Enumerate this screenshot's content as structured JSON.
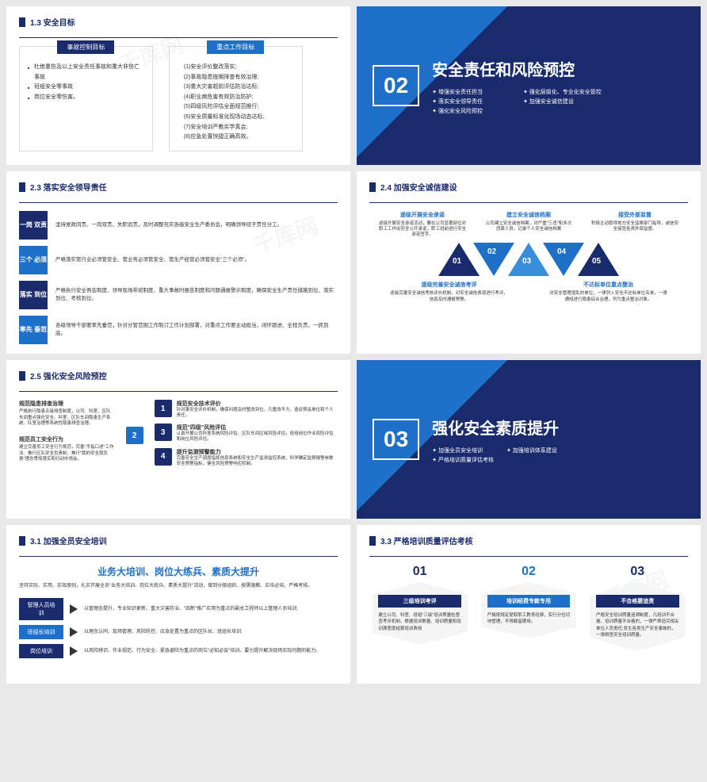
{
  "watermark": "千库网",
  "s13": {
    "title": "1.3 安全目标",
    "box1": {
      "tag": "事故控制目标",
      "items": [
        "杜绝重伤及以上安全责任事故和重大非伤亡事故",
        "班组安全零事故",
        "岗位安全零伤害。"
      ]
    },
    "box2": {
      "tag": "重点工作目标",
      "items": [
        "(1)安全评价整改落实;",
        "(2)事故隐患按期排查有效治理;",
        "(3)重大灾害超前评估防治达标;",
        "(4)职业病危害有效防治防护;",
        "(5)四级风险评估全面规范推行;",
        "(6)安全质量标准化现场动态达标;",
        "(7)安全培训严教实学真会;",
        "(8)应急处置快捷正确高效。"
      ]
    }
  },
  "sec02": {
    "num": "02",
    "title": "安全责任和风险预控",
    "bullets": [
      "增强安全责任担当",
      "强化层级化、专业化安全管控",
      "落实安全领导责任",
      "加强安全诚信建设",
      "强化安全风险预控"
    ]
  },
  "s23": {
    "title": "2.3 落实安全领导责任",
    "rows": [
      {
        "lbl": "一岗\n双责",
        "cls": "navy",
        "desc": "坚持党政同责、一岗双责、失职追责，及时调整充实各级安全生产委员会，明确领导班子责任分工。"
      },
      {
        "lbl": "三个\n必须",
        "cls": "blue",
        "desc": "严格落实管行业必须管安全、管业务必须管安全、管生产经营必须管安全\"三个必须\"。"
      },
      {
        "lbl": "落实\n到位",
        "cls": "navy",
        "desc": "严格执行安全例会制度、领导现场带班制度、重大事故时报告制度和问题通报警示制度，确保安全生产责任措施到位、落实到位、考核到位。"
      },
      {
        "lbl": "率先\n垂范",
        "cls": "blue",
        "desc": "各级领导干部要率先垂范，针对分管范围工作制订工作计划部署，对重点工作要主动担当，闭环跟进、全程负责、一抓到底。"
      }
    ]
  },
  "s24": {
    "title": "2.4 加强安全诚信建设",
    "tops": [
      {
        "h": "逐级开展安全承诺",
        "p": "逐级开展安全承诺活动，要在公司显著部位对职工工作出安全公开承诺，职工班前进行安全承诺签字。"
      },
      {
        "h": "建立安全诚信档案",
        "p": "公司建立安全诚信档案，对严重\"三违\"和多次违章人员，记录个人安全诚信档案"
      },
      {
        "h": "接受外部监督",
        "p": "积极主动取得地方安全监察部门指导，诚信安全接受各类外部监督。"
      }
    ],
    "tris": [
      {
        "n": "01",
        "dir": "up",
        "c": "#1a2b6d"
      },
      {
        "n": "02",
        "dir": "down",
        "c": "#1e6fc7"
      },
      {
        "n": "03",
        "dir": "up",
        "c": "#3a8dd8"
      },
      {
        "n": "04",
        "dir": "down",
        "c": "#1e6fc7"
      },
      {
        "n": "05",
        "dir": "up",
        "c": "#1a2b6d"
      }
    ],
    "bots": [
      {
        "h": "逐级完善安全诚信考评",
        "p": "逐级完善安全诚信考核评价机制，对安全诚信表现进行考评，信息及时通报预警。"
      },
      {
        "h": "不达标单位重点整治",
        "p": "对安全管理混乱的单位，一律列入安全不达标单位名单，一律通知进行隐患综合治理，列为重点整治对象。"
      }
    ]
  },
  "s25": {
    "title": "2.5 强化安全风险预控",
    "left": [
      {
        "h": "规范隐患排查治理",
        "p": "严格执行隐患五级排查制度，公司、科室、区队车间重点强化安全、科室、区队车间隐患生产系统、队室治理等系统性隐患排查治理。",
        "c": "#1e6fc7"
      },
      {
        "h": "规范员工安全行为",
        "p": "建立完善员工安全行为规范，完善\"手指口述\"工作法、推行区队安全负责制、推行\"我的安全我负责\"理念贯彻落实和行动中领会。",
        "c": "#1a2b6d"
      }
    ],
    "midnum": "2",
    "right": [
      {
        "n": "1",
        "c": "#1a2b6d",
        "h": "规范安全技术评价",
        "p": "针对事安全评价机制，确保问题及时整改到位，凡整改不力、造反预关单位和个人责任。"
      },
      {
        "n": "3",
        "c": "#1a2b6d",
        "h": "规范\"四级\"风险评估",
        "p": "认真开展公司科室系统风险评估、区队车间区域风险评估，班组岗位作业风险评估和岗位风险评估。"
      },
      {
        "n": "4",
        "c": "#1a2b6d",
        "h": "提升监测预警能力",
        "p": "完善安全生产调度指挥信息系统和安全生产监测监控系统，科学确定监察报警参数安全预警指标，健全风险预警响应机制。"
      }
    ]
  },
  "sec03": {
    "num": "03",
    "title": "强化安全素质提升",
    "bullets": [
      "加强全员安全培训",
      "加强培训体系建设",
      "严格培训质量评估考核"
    ]
  },
  "s31": {
    "title": "3.1 加强全员安全培训",
    "headline": "业务大培训、岗位大练兵、素质大提升",
    "intro": "坚持实际、实用、实效原则，扎实开展全员\"业务大培训、岗位大练兵、素质大提升\"活动，做到分级组织、按需施教、应培必培、严格考核。",
    "rows": [
      {
        "lbl": "管理人员培训",
        "cls": "navy",
        "p": "以管理念提升，专业知识更新、重大灾害防治、\"四新\"推广应用为重点的副总工程师以上管理人员培训;"
      },
      {
        "lbl": "班组长培训",
        "cls": "blue",
        "p": "以理念认同、现场管理、风险防控、应急处置为重点的区队长、班组长培训;"
      },
      {
        "lbl": "岗位培训",
        "cls": "navy",
        "p": "以风险辨识、作业规范、行为安全、紧急避险为重点的岗位\"必知必会\"培训。要力提升解决现场实际问题的能力。"
      }
    ]
  },
  "s33": {
    "title": "3.3 严格培训质量评估考核",
    "cards": [
      {
        "n": "01",
        "c": "#1a2b6d",
        "h": "三级培训考评",
        "p": "建立公司、科室、班组\"三级\"培训质量检督查考评机制，根据培训数量、培训质量和培训满意度结算培训费用"
      },
      {
        "n": "02",
        "c": "#1e6fc7",
        "h": "培训经费专款专用",
        "p": "严格按规定提取职工教育经费，实行分位切块管理，不得截留挪用。"
      },
      {
        "n": "03",
        "c": "#1a2b6d",
        "h": "不合格要追责",
        "p": "严格安全培训质量追溯制度，凡培训不合格、培训质量不合格的，一律严肃追究相关单位人员责任;发生各类生产安全事故的，一律倒查安全培训质量。"
      }
    ]
  }
}
